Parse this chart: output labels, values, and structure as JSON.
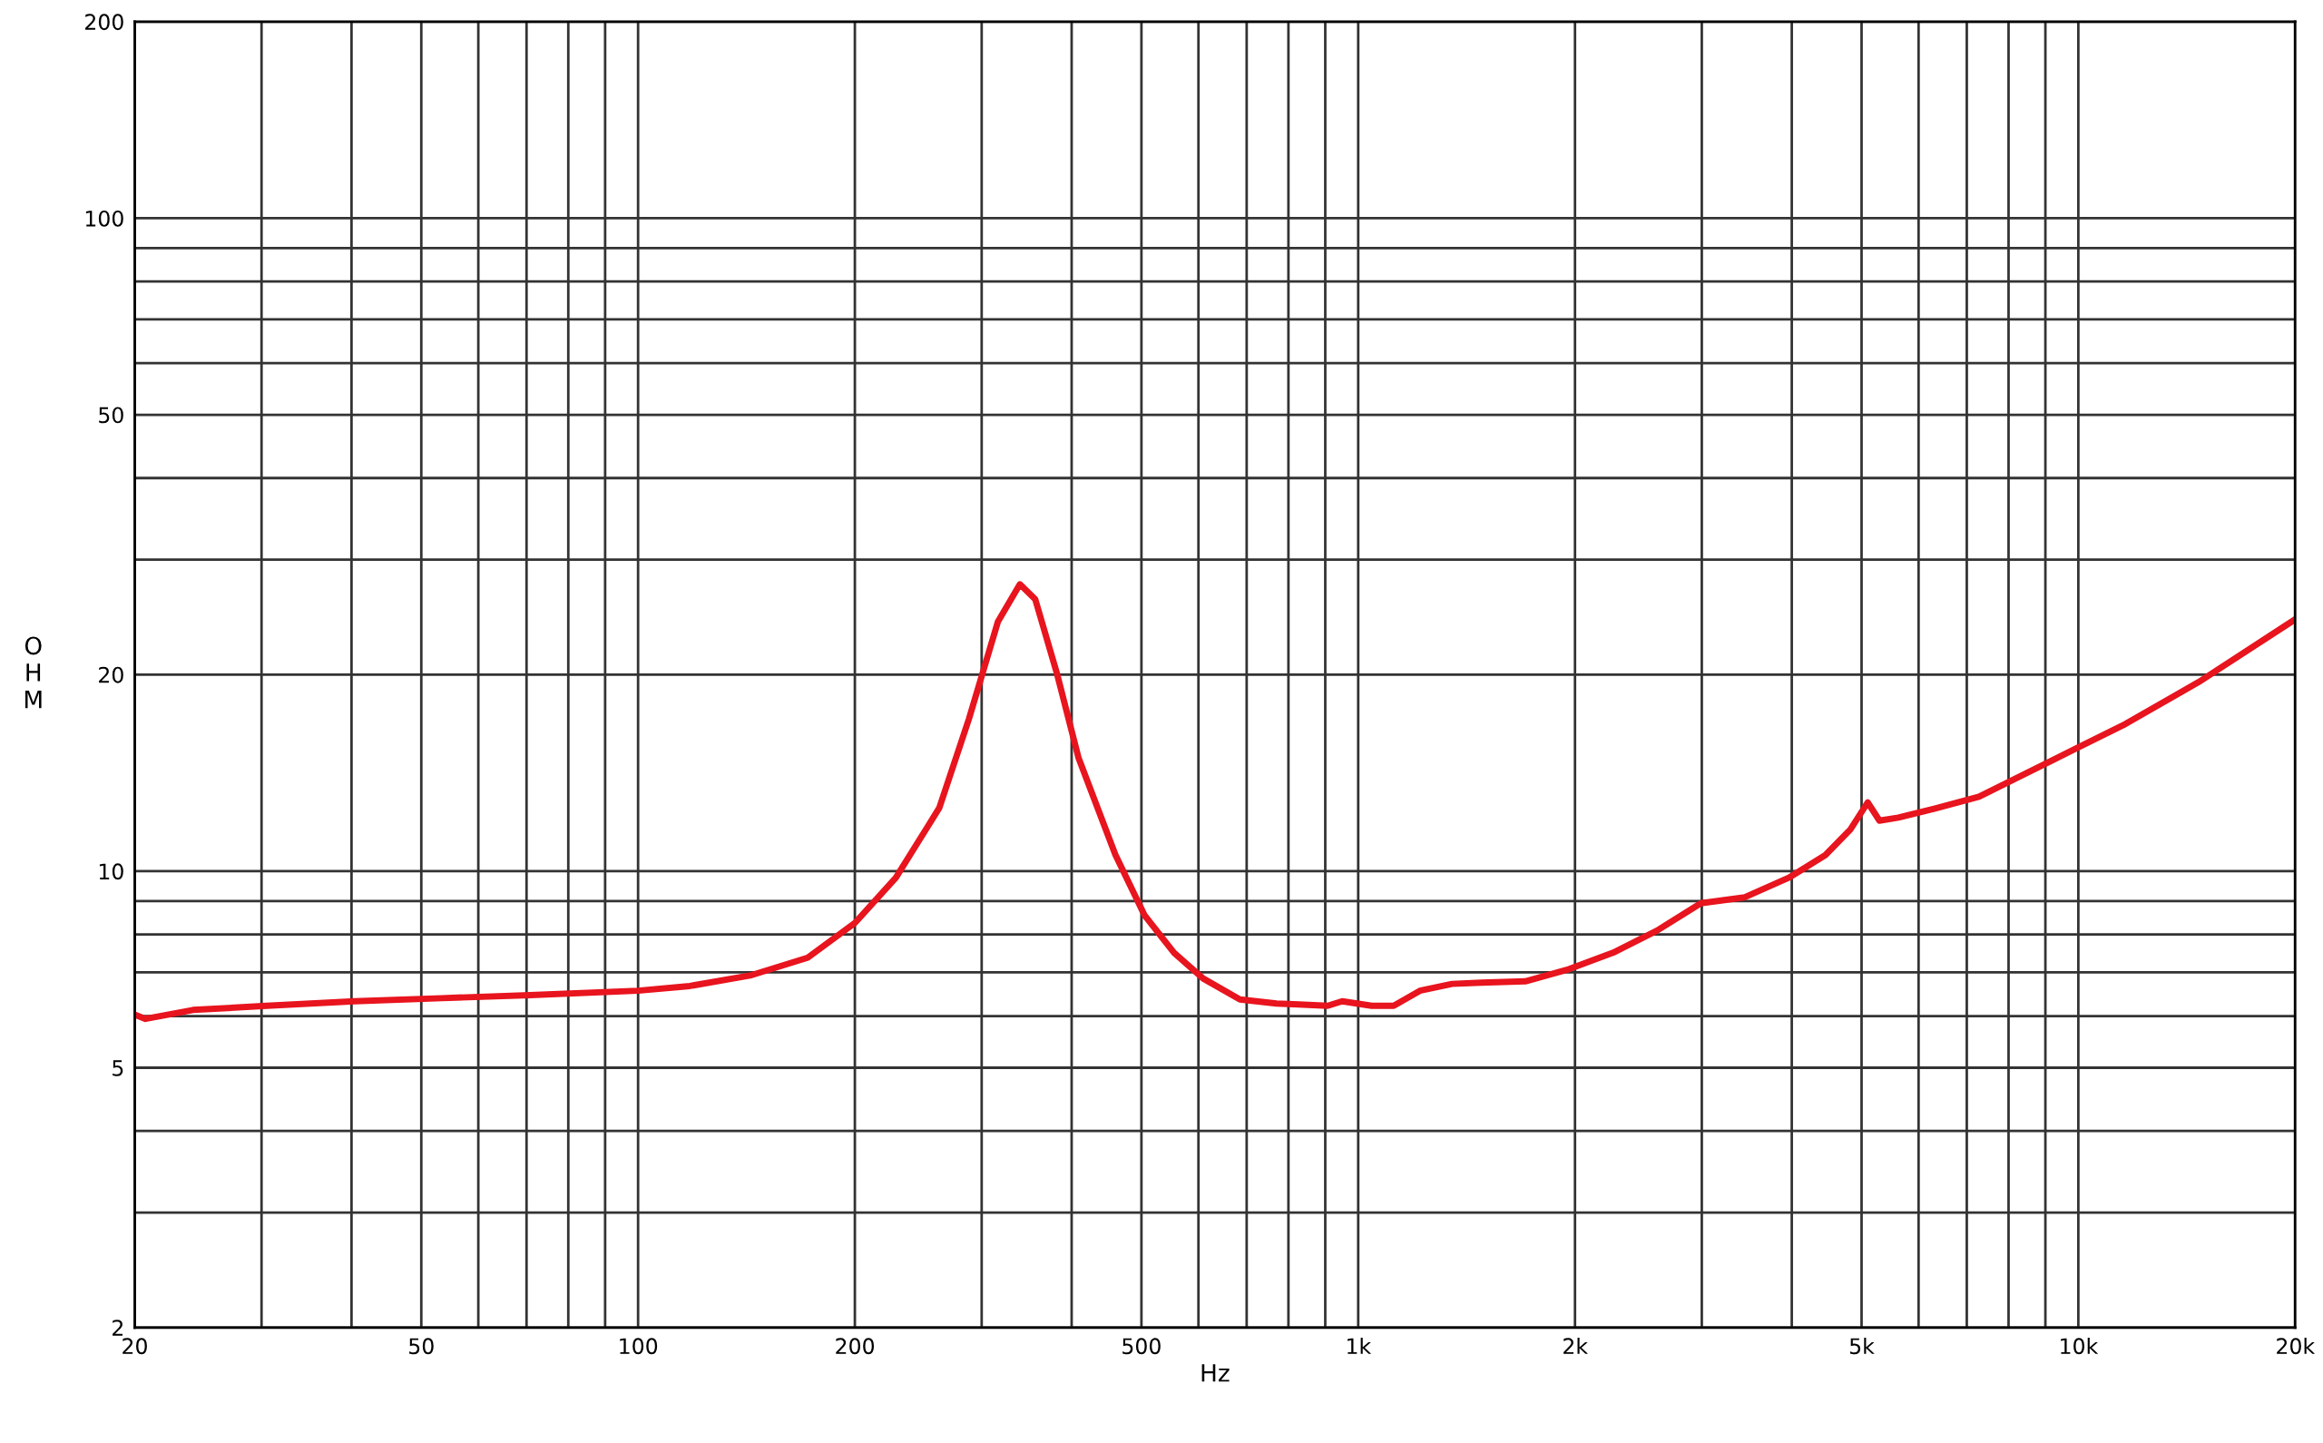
{
  "chart_data": {
    "type": "line",
    "xlabel": "Hz",
    "ylabel": "OHM",
    "log": "xy",
    "grid": true,
    "legend": false,
    "marker": "none",
    "line_style": "solid",
    "xlim": [
      20,
      20000
    ],
    "ylim": [
      2,
      200
    ],
    "xticks": [
      20,
      {
        "value": 30,
        "label": null
      },
      {
        "value": 40,
        "label": null
      },
      50,
      {
        "value": 60,
        "label": null
      },
      {
        "value": 70,
        "label": null
      },
      {
        "value": 80,
        "label": null
      },
      {
        "value": 90,
        "label": null
      },
      100,
      200,
      {
        "value": 300,
        "label": null
      },
      {
        "value": 400,
        "label": null
      },
      500,
      {
        "value": 600,
        "label": null
      },
      {
        "value": 700,
        "label": null
      },
      {
        "value": 800,
        "label": null
      },
      {
        "value": 900,
        "label": null
      },
      {
        "value": 1000,
        "label": "1k"
      },
      {
        "value": 2000,
        "label": "2k"
      },
      {
        "value": 3000,
        "label": null
      },
      {
        "value": 4000,
        "label": null
      },
      {
        "value": 5000,
        "label": "5k"
      },
      {
        "value": 6000,
        "label": null
      },
      {
        "value": 7000,
        "label": null
      },
      {
        "value": 8000,
        "label": null
      },
      {
        "value": 9000,
        "label": null
      },
      {
        "value": 10000,
        "label": "10k"
      },
      {
        "value": 20000,
        "label": "20k"
      }
    ],
    "yticks": [
      2,
      {
        "value": 3,
        "label": null
      },
      {
        "value": 4,
        "label": null
      },
      5,
      {
        "value": 6,
        "label": null
      },
      {
        "value": 7,
        "label": null
      },
      {
        "value": 8,
        "label": null
      },
      {
        "value": 9,
        "label": null
      },
      10,
      20,
      {
        "value": 30,
        "label": null
      },
      {
        "value": 40,
        "label": null
      },
      50,
      {
        "value": 60,
        "label": null
      },
      {
        "value": 70,
        "label": null
      },
      {
        "value": 80,
        "label": null
      },
      {
        "value": 90,
        "label": null
      },
      100,
      200
    ],
    "series": [
      {
        "color": "#e8141e",
        "x": [
          20,
          20.7,
          24.1,
          30.5,
          40.4,
          53.4,
          70.8,
          100,
          118,
          143,
          172,
          200,
          228,
          262,
          288,
          316,
          339,
          356,
          382,
          409,
          460,
          505,
          555,
          609,
          685,
          770,
          826,
          907,
          950,
          1044,
          1120,
          1218,
          1350,
          1483,
          1706,
          1963,
          2258,
          2600,
          2991,
          3442,
          3961,
          4453,
          4823,
          5100,
          5295,
          5625,
          6325,
          7278,
          9196,
          11620,
          14690,
          20000
        ],
        "values": [
          6.03,
          5.94,
          6.13,
          6.22,
          6.32,
          6.39,
          6.46,
          6.56,
          6.67,
          6.92,
          7.37,
          8.33,
          9.77,
          12.5,
          17.1,
          24.1,
          27.5,
          26.1,
          20.0,
          14.9,
          10.6,
          8.56,
          7.5,
          6.85,
          6.36,
          6.27,
          6.25,
          6.22,
          6.32,
          6.22,
          6.22,
          6.56,
          6.72,
          6.75,
          6.78,
          7.08,
          7.5,
          8.11,
          8.93,
          9.12,
          9.77,
          10.58,
          11.58,
          12.74,
          11.95,
          12.08,
          12.47,
          13.0,
          14.78,
          16.8,
          19.48,
          24.3
        ]
      }
    ]
  }
}
